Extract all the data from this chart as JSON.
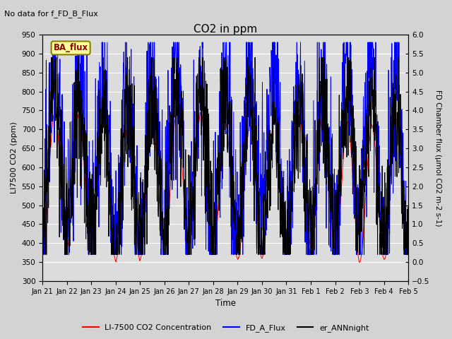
{
  "title": "CO2 in ppm",
  "top_left_text": "No data for f_FD_B_Flux",
  "ylabel_left": "LI7500 CO2 (ppm)",
  "ylabel_right": "FD Chamber flux (μmol CO2 m-2 s-1)",
  "xlabel": "Time",
  "ylim_left": [
    300,
    950
  ],
  "ylim_right": [
    -0.5,
    6.0
  ],
  "yticks_left": [
    300,
    350,
    400,
    450,
    500,
    550,
    600,
    650,
    700,
    750,
    800,
    850,
    900,
    950
  ],
  "yticks_right": [
    -0.5,
    0.0,
    0.5,
    1.0,
    1.5,
    2.0,
    2.5,
    3.0,
    3.5,
    4.0,
    4.5,
    5.0,
    5.5,
    6.0
  ],
  "xtick_labels": [
    "Jan 21",
    "Jan 22",
    "Jan 23",
    "Jan 24",
    "Jan 25",
    "Jan 26",
    "Jan 27",
    "Jan 28",
    "Jan 29",
    "Jan 30",
    "Jan 31",
    "Feb 1",
    "Feb 2",
    "Feb 3",
    "Feb 4",
    "Feb 5"
  ],
  "color_red": "#ff0000",
  "color_blue": "#0000ff",
  "color_black": "#000000",
  "legend_labels": [
    "LI-7500 CO2 Concentration",
    "FD_A_Flux",
    "er_ANNnight"
  ],
  "ba_flux_label": "BA_flux",
  "ba_flux_bg": "#ffff99",
  "ba_flux_border": "#8B8000",
  "ba_flux_text_color": "#8B0000",
  "fig_bg": "#d3d3d3",
  "plot_bg": "#dcdcdc",
  "n_days": 15,
  "pts_per_day": 96,
  "seed": 42
}
